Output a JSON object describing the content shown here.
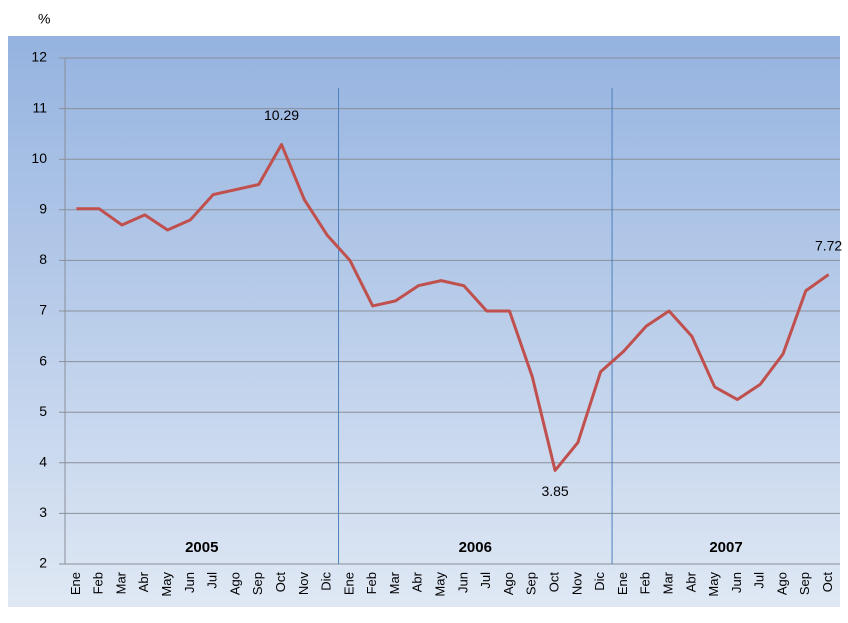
{
  "chart_data": {
    "type": "line",
    "y_label": "%",
    "groups": [
      {
        "label": "2005",
        "categories": [
          "Ene",
          "Feb",
          "Mar",
          "Abr",
          "May",
          "Jun",
          "Jul",
          "Ago",
          "Sep",
          "Oct",
          "Nov",
          "Dic"
        ]
      },
      {
        "label": "2006",
        "categories": [
          "Ene",
          "Feb",
          "Mar",
          "Abr",
          "May",
          "Jun",
          "Jul",
          "Ago",
          "Sep",
          "Oct",
          "Nov",
          "Dic"
        ]
      },
      {
        "label": "2007",
        "categories": [
          "Ene",
          "Feb",
          "Mar",
          "Abr",
          "May",
          "Jun",
          "Jul",
          "Ago",
          "Sep",
          "Oct"
        ]
      }
    ],
    "series": [
      {
        "color": "#c0504d",
        "values": [
          9.02,
          9.02,
          8.7,
          8.9,
          8.6,
          8.8,
          9.3,
          9.4,
          9.5,
          10.29,
          9.2,
          8.5,
          8.0,
          7.1,
          7.2,
          7.5,
          7.6,
          7.5,
          7.0,
          7.0,
          5.7,
          3.85,
          4.4,
          5.8,
          6.2,
          6.7,
          7.0,
          6.5,
          5.5,
          5.25,
          5.55,
          6.15,
          7.4,
          7.72
        ]
      }
    ],
    "data_labels": [
      9,
      21,
      33
    ],
    "ylim": [
      2,
      12
    ],
    "yticks": [
      2,
      3,
      4,
      5,
      6,
      7,
      8,
      9,
      10,
      11,
      12
    ],
    "grid": true
  }
}
